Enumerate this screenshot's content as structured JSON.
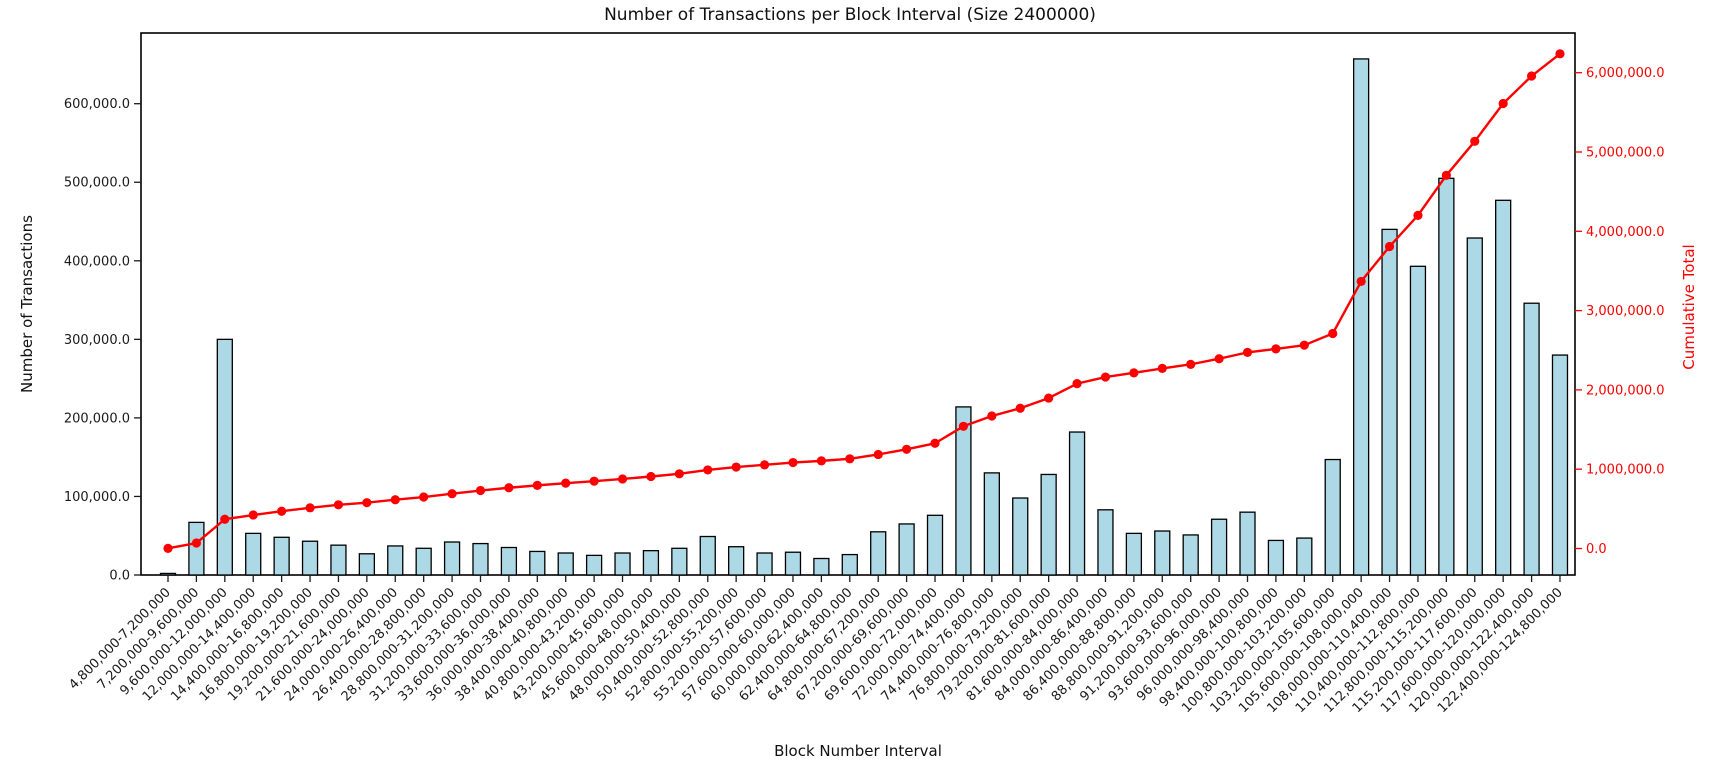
{
  "chart_data": {
    "type": "bar",
    "title": "Number of Transactions per Block Interval (Size 2400000)",
    "xlabel": "Block Number Interval",
    "ylabel_left": "Number of Transactions",
    "ylabel_right": "Cumulative Total",
    "grid": false,
    "legend": "none",
    "colors": {
      "bar_fill": "#add8e6",
      "bar_edge": "#000000",
      "line": "#ff0000",
      "axis_text": "#1a1a1a",
      "right_axis_text": "#ff0000",
      "background": "#ffffff"
    },
    "left_axis": {
      "tick_values": [
        0,
        100000,
        200000,
        300000,
        400000,
        500000,
        600000
      ],
      "tick_labels": [
        "0.0",
        "100,000.0",
        "200,000.0",
        "300,000.0",
        "400,000.0",
        "500,000.0",
        "600,000.0"
      ],
      "ylim": [
        0,
        690000
      ]
    },
    "right_axis": {
      "tick_values": [
        0,
        1000000,
        2000000,
        3000000,
        4000000,
        5000000,
        6000000
      ],
      "tick_labels": [
        "0.0",
        "1,000,000.0",
        "2,000,000.0",
        "3,000,000.0",
        "4,000,000.0",
        "5,000,000.0",
        "6,000,000.0"
      ],
      "ylim": [
        -310000,
        6545000
      ]
    },
    "categories": [
      "4,800,000-7,200,000",
      "7,200,000-9,600,000",
      "9,600,000-12,000,000",
      "12,000,000-14,400,000",
      "14,400,000-16,800,000",
      "16,800,000-19,200,000",
      "19,200,000-21,600,000",
      "21,600,000-24,000,000",
      "24,000,000-26,400,000",
      "26,400,000-28,800,000",
      "28,800,000-31,200,000",
      "31,200,000-33,600,000",
      "33,600,000-36,000,000",
      "36,000,000-38,400,000",
      "38,400,000-40,800,000",
      "40,800,000-43,200,000",
      "43,200,000-45,600,000",
      "45,600,000-48,000,000",
      "48,000,000-50,400,000",
      "50,400,000-52,800,000",
      "52,800,000-55,200,000",
      "55,200,000-57,600,000",
      "57,600,000-60,000,000",
      "60,000,000-62,400,000",
      "62,400,000-64,800,000",
      "64,800,000-67,200,000",
      "67,200,000-69,600,000",
      "69,600,000-72,000,000",
      "72,000,000-74,400,000",
      "74,400,000-76,800,000",
      "76,800,000-79,200,000",
      "79,200,000-81,600,000",
      "81,600,000-84,000,000",
      "84,000,000-86,400,000",
      "86,400,000-88,800,000",
      "88,800,000-91,200,000",
      "91,200,000-93,600,000",
      "93,600,000-96,000,000",
      "96,000,000-98,400,000",
      "98,400,000-100,800,000",
      "100,800,000-103,200,000",
      "103,200,000-105,600,000",
      "105,600,000-108,000,000",
      "108,000,000-110,400,000",
      "110,400,000-112,800,000",
      "112,800,000-115,200,000",
      "115,200,000-117,600,000",
      "117,600,000-120,000,000",
      "120,000,000-122,400,000",
      "122,400,000-124,800,000"
    ],
    "series": [
      {
        "name": "Number of Transactions",
        "type": "bar",
        "axis": "left",
        "values": [
          2000,
          67000,
          300000,
          53000,
          48000,
          43000,
          38000,
          27000,
          37000,
          34000,
          42000,
          40000,
          35000,
          30000,
          28000,
          25000,
          28000,
          31000,
          34000,
          49000,
          36000,
          28000,
          29000,
          21000,
          26000,
          55000,
          65000,
          76000,
          214000,
          130000,
          98000,
          128000,
          182000,
          83000,
          53000,
          56000,
          51000,
          71000,
          80000,
          44000,
          47000,
          147000,
          657000,
          440000,
          393000,
          505000,
          429000,
          477000,
          346000,
          280000
        ]
      },
      {
        "name": "Cumulative Total",
        "type": "line",
        "axis": "right",
        "marker": "circle",
        "values": [
          2000,
          69000,
          369000,
          422000,
          470000,
          513000,
          551000,
          578000,
          615000,
          649000,
          691000,
          731000,
          766000,
          796000,
          824000,
          849000,
          877000,
          908000,
          942000,
          991000,
          1027000,
          1055000,
          1084000,
          1105000,
          1131000,
          1186000,
          1251000,
          1327000,
          1541000,
          1671000,
          1769000,
          1897000,
          2079000,
          2162000,
          2215000,
          2271000,
          2322000,
          2393000,
          2473000,
          2517000,
          2564000,
          2711000,
          3368000,
          3808000,
          4201000,
          4706000,
          5135000,
          5612000,
          5958000,
          6238000
        ]
      }
    ]
  }
}
